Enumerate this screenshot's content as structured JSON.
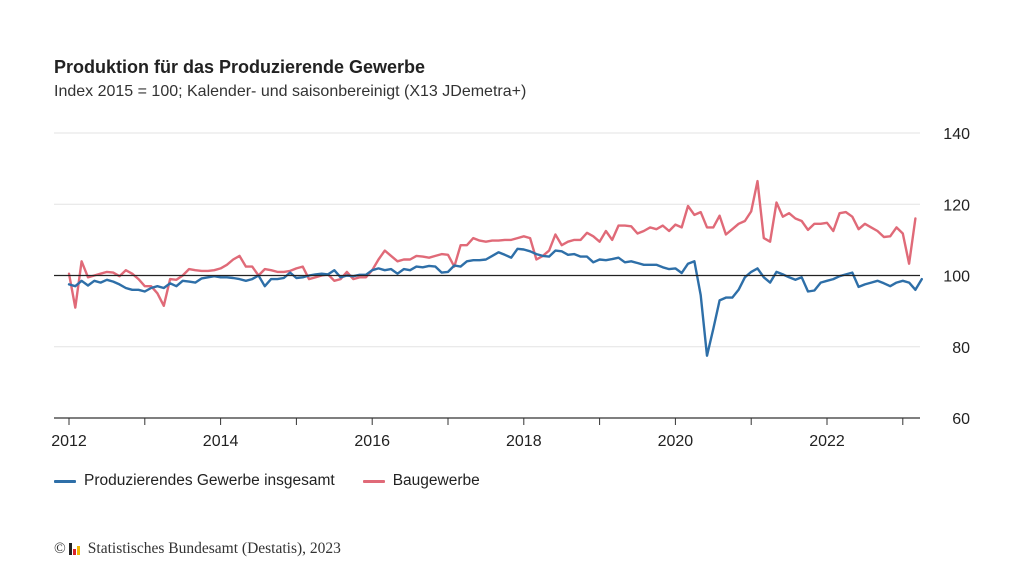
{
  "title": "Produktion für das Produzierende Gewerbe",
  "subtitle": "Index 2015 = 100; Kalender- und saisonbereinigt (X13 JDemetra+)",
  "footer": {
    "copyright_symbol": "©",
    "source": "Statistisches Bundesamt (Destatis), 2023"
  },
  "colors": {
    "series1": "#2e6fa8",
    "series2": "#e06a78",
    "baseline": "#222222",
    "grid": "#e3e3e3",
    "axis": "#333333"
  },
  "chart_data": {
    "type": "line",
    "x_start": "2012-01",
    "frequency": "monthly",
    "ylim": [
      60,
      140
    ],
    "yticks": [
      60,
      80,
      100,
      120,
      140
    ],
    "xticks": [
      "2012",
      "2014",
      "2016",
      "2018",
      "2020",
      "2022"
    ],
    "reference_line": 100,
    "grid": true,
    "legend_position": "bottom",
    "series": [
      {
        "name": "Produzierendes Gewerbe insgesamt",
        "color": "#2e6fa8",
        "values": [
          97.5,
          97.0,
          98.5,
          97.2,
          98.5,
          98.0,
          98.8,
          98.3,
          97.5,
          96.5,
          96.0,
          96.0,
          95.5,
          96.5,
          97.0,
          96.5,
          97.8,
          97.0,
          98.5,
          98.3,
          98.0,
          99.2,
          99.5,
          99.8,
          99.5,
          99.5,
          99.3,
          99.0,
          98.5,
          99.0,
          100.0,
          97.0,
          99.0,
          99.0,
          99.3,
          100.8,
          99.3,
          99.5,
          100.0,
          100.3,
          100.5,
          100.3,
          101.5,
          99.5,
          100.0,
          99.8,
          100.2,
          100.2,
          101.5,
          102.0,
          101.5,
          101.8,
          100.5,
          101.8,
          101.5,
          102.5,
          102.3,
          102.7,
          102.5,
          100.8,
          101.0,
          102.8,
          102.5,
          104.0,
          104.3,
          104.3,
          104.5,
          105.5,
          106.5,
          105.8,
          105.0,
          107.5,
          107.3,
          106.8,
          106.0,
          105.5,
          105.3,
          107.0,
          106.8,
          105.8,
          106.0,
          105.3,
          105.3,
          103.7,
          104.5,
          104.3,
          104.6,
          105.0,
          103.7,
          104.0,
          103.5,
          103.0,
          103.0,
          103.0,
          102.3,
          101.8,
          102.0,
          100.7,
          103.3,
          104.0,
          94.5,
          77.5,
          85.0,
          93.0,
          93.8,
          93.8,
          96.0,
          99.5,
          101.0,
          102.0,
          99.5,
          98.0,
          101.0,
          100.3,
          99.5,
          98.8,
          99.5,
          95.5,
          95.8,
          98.0,
          98.5,
          99.0,
          99.8,
          100.3,
          100.8,
          96.8,
          97.5,
          98.0,
          98.5,
          97.8,
          97.0,
          98.0,
          98.5,
          98.0,
          96.0,
          99.0
        ]
      },
      {
        "name": "Baugewerbe",
        "color": "#e06a78",
        "values": [
          100.5,
          91.0,
          104.0,
          99.5,
          100.0,
          100.5,
          101.0,
          100.8,
          99.8,
          101.5,
          100.5,
          99.0,
          97.0,
          97.0,
          95.0,
          91.5,
          99.0,
          98.8,
          100.0,
          101.8,
          101.5,
          101.3,
          101.3,
          101.5,
          102.0,
          103.0,
          104.5,
          105.5,
          102.5,
          102.5,
          100.0,
          101.8,
          101.5,
          101.0,
          101.0,
          101.3,
          102.0,
          102.5,
          99.0,
          99.5,
          100.0,
          100.3,
          98.5,
          99.0,
          101.0,
          99.0,
          99.5,
          99.5,
          101.5,
          104.5,
          107.0,
          105.5,
          104.0,
          104.5,
          104.5,
          105.5,
          105.3,
          105.0,
          105.5,
          106.0,
          105.8,
          102.5,
          108.5,
          108.5,
          110.5,
          109.8,
          109.5,
          109.8,
          109.8,
          110.0,
          110.0,
          110.5,
          111.0,
          110.5,
          104.5,
          105.5,
          107.0,
          111.5,
          108.5,
          109.5,
          110.0,
          110.0,
          112.0,
          111.0,
          109.5,
          112.5,
          110.0,
          114.0,
          114.0,
          113.8,
          111.8,
          112.5,
          113.5,
          113.0,
          114.0,
          112.5,
          114.3,
          113.5,
          119.5,
          117.0,
          117.8,
          113.5,
          113.5,
          116.8,
          111.5,
          113.0,
          114.5,
          115.3,
          118.0,
          126.5,
          110.5,
          109.5,
          120.5,
          116.5,
          117.5,
          116.0,
          115.3,
          112.8,
          114.5,
          114.5,
          114.8,
          112.5,
          117.5,
          117.8,
          116.5,
          113.0,
          114.5,
          113.5,
          112.5,
          110.8,
          111.0,
          113.5,
          111.8,
          103.3,
          116.0
        ]
      }
    ]
  }
}
